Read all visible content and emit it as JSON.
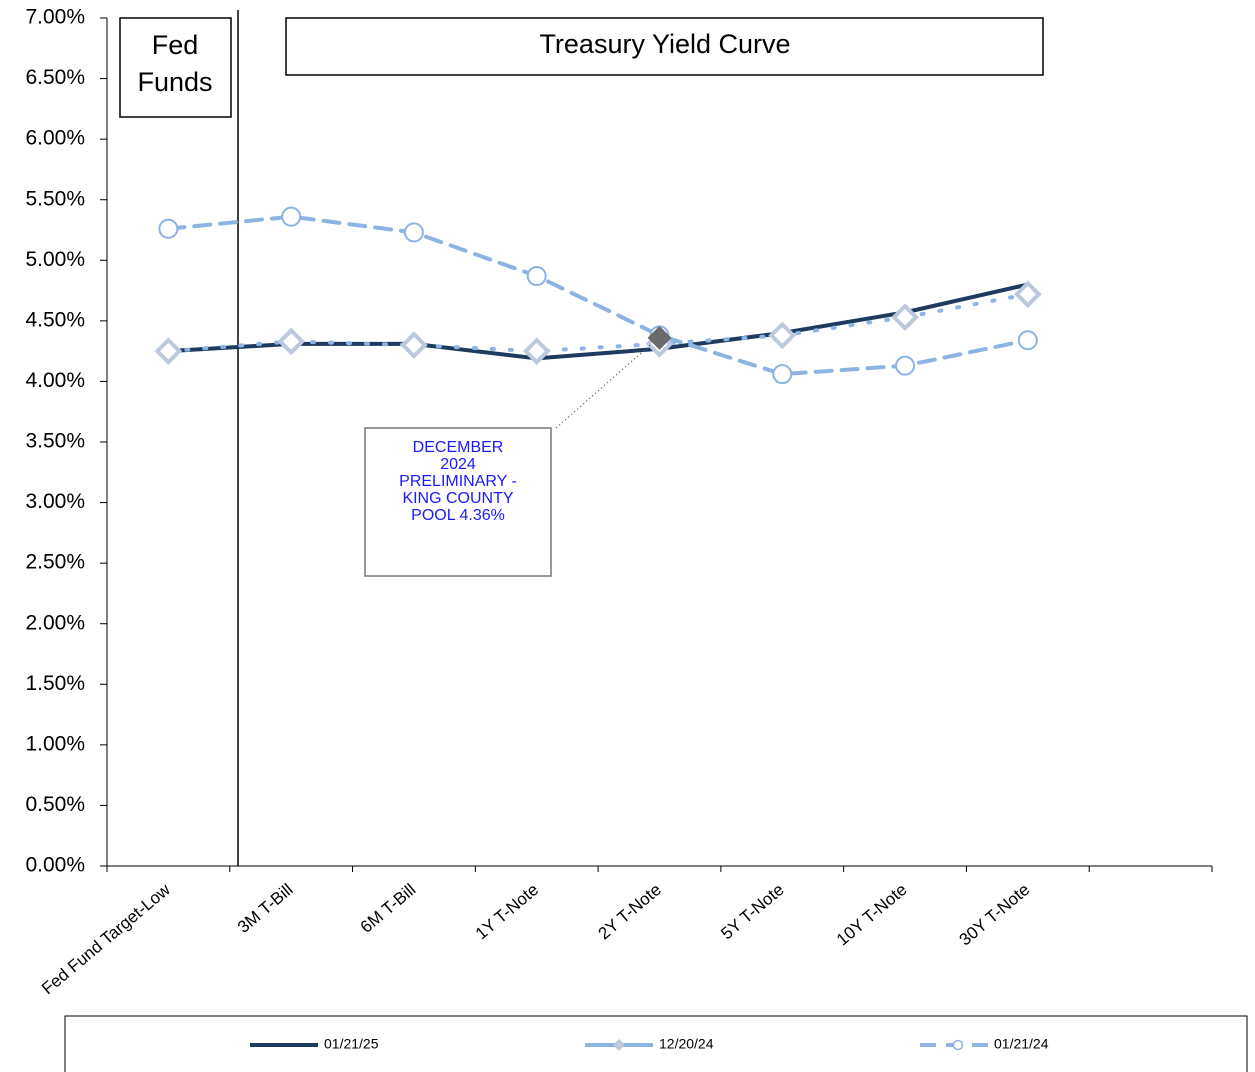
{
  "chart_data": {
    "type": "line",
    "title": "Treasury Yield Curve",
    "section_label": [
      "Fed",
      "Funds"
    ],
    "categories": [
      "Fed Fund Target-Low",
      "3M T-Bill",
      "6M T-Bill",
      "1Y  T-Note",
      "2Y T-Note",
      "5Y T-Note",
      "10Y T-Note",
      "30Y T-Note"
    ],
    "series": [
      {
        "name": "01/21/25",
        "color": "#1f3a5f",
        "style": "solid",
        "marker": "none",
        "values": [
          4.25,
          4.31,
          4.31,
          4.19,
          4.27,
          4.4,
          4.57,
          4.8
        ]
      },
      {
        "name": "12/20/24",
        "color": "#8db3e2",
        "style": "dotted",
        "marker": "diamond",
        "values": [
          4.25,
          4.33,
          4.3,
          4.25,
          4.31,
          4.38,
          4.53,
          4.72
        ]
      },
      {
        "name": "01/21/24",
        "color": "#8db3e2",
        "style": "dashed",
        "marker": "circle",
        "values": [
          5.26,
          5.36,
          5.23,
          4.87,
          4.38,
          4.06,
          4.13,
          4.34
        ]
      }
    ],
    "annotation": {
      "lines": [
        "DECEMBER",
        "2024",
        "PRELIMINARY -",
        "KING COUNTY",
        "POOL 4.36%"
      ],
      "category_index": 4,
      "value": 4.36,
      "color": "#1a1aff",
      "marker_color": "#6b6b6b"
    },
    "ylim": [
      0,
      7
    ],
    "yticks": [
      {
        "value": 0,
        "label": "0.00%"
      },
      {
        "value": 0.5,
        "label": "0.50%"
      },
      {
        "value": 1,
        "label": "1.00%"
      },
      {
        "value": 1.5,
        "label": "1.50%"
      },
      {
        "value": 2,
        "label": "2.00%"
      },
      {
        "value": 2.5,
        "label": "2.50%"
      },
      {
        "value": 3,
        "label": "3.00%"
      },
      {
        "value": 3.5,
        "label": "3.50%"
      },
      {
        "value": 4,
        "label": "4.00%"
      },
      {
        "value": 4.5,
        "label": "4.50%"
      },
      {
        "value": 5,
        "label": "5.00%"
      },
      {
        "value": 5.5,
        "label": "5.50%"
      },
      {
        "value": 6,
        "label": "6.00%"
      },
      {
        "value": 6.5,
        "label": "6.50%"
      },
      {
        "value": 7,
        "label": "7.00%"
      }
    ],
    "grid": false
  }
}
